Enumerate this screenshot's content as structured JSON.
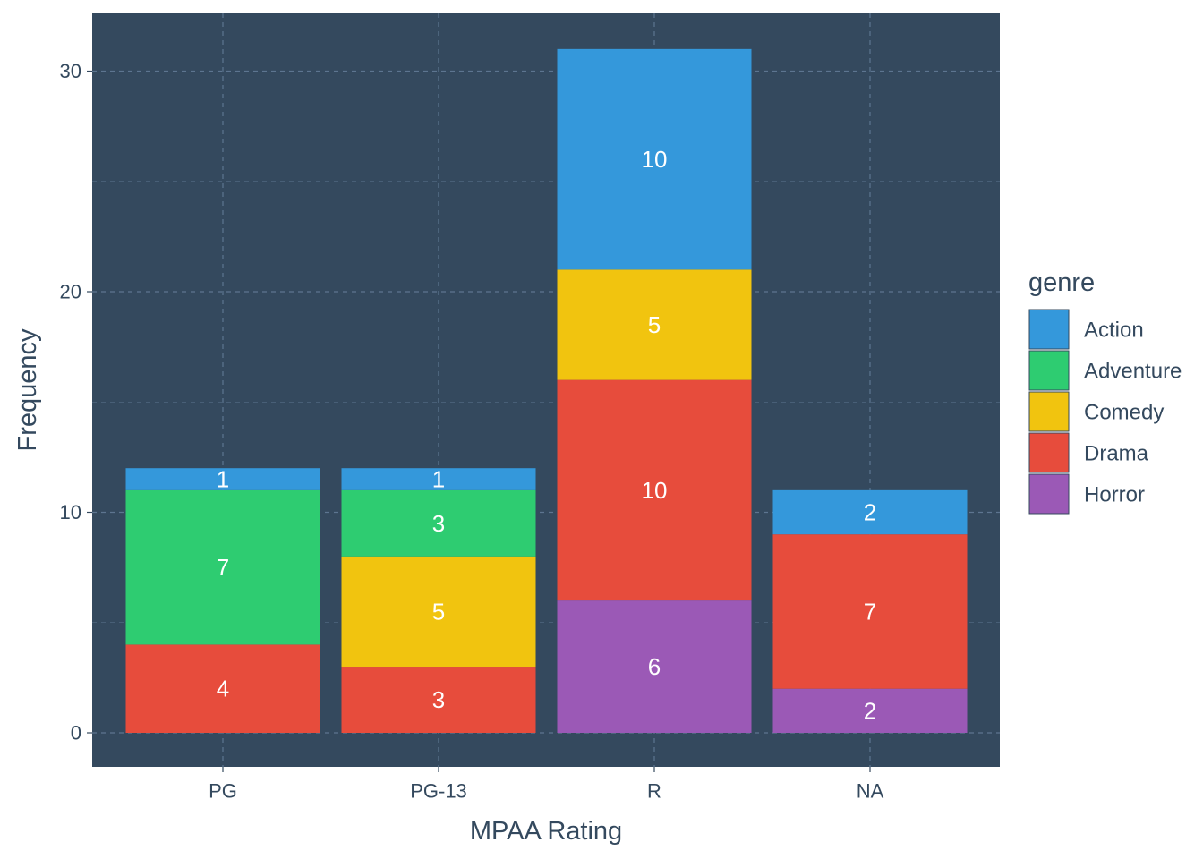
{
  "chart_data": {
    "type": "bar",
    "stacked": true,
    "title": "",
    "xlabel": "MPAA Rating",
    "ylabel": "Frequency",
    "categories": [
      "PG",
      "PG-13",
      "R",
      "NA"
    ],
    "yticks": [
      "0",
      "10",
      "20",
      "30"
    ],
    "ylim": [
      -1.5,
      32.6
    ],
    "grid": true,
    "legend_title": "genre",
    "legend_position": "right",
    "stack_order": [
      "Horror",
      "Drama",
      "Comedy",
      "Adventure",
      "Action"
    ],
    "series": [
      {
        "name": "Action",
        "color": "#3498db",
        "values": [
          1,
          1,
          10,
          2
        ]
      },
      {
        "name": "Adventure",
        "color": "#2ecc71",
        "values": [
          7,
          3,
          0,
          0
        ]
      },
      {
        "name": "Comedy",
        "color": "#f1c40f",
        "values": [
          0,
          5,
          5,
          0
        ]
      },
      {
        "name": "Drama",
        "color": "#e74c3c",
        "values": [
          4,
          3,
          10,
          7
        ]
      },
      {
        "name": "Horror",
        "color": "#9b59b6",
        "values": [
          0,
          0,
          6,
          2
        ]
      }
    ],
    "colors": {
      "panel": "#34495e",
      "grid": "#5d7590",
      "text": "#34495e",
      "bar_label": "#ffffff"
    }
  }
}
